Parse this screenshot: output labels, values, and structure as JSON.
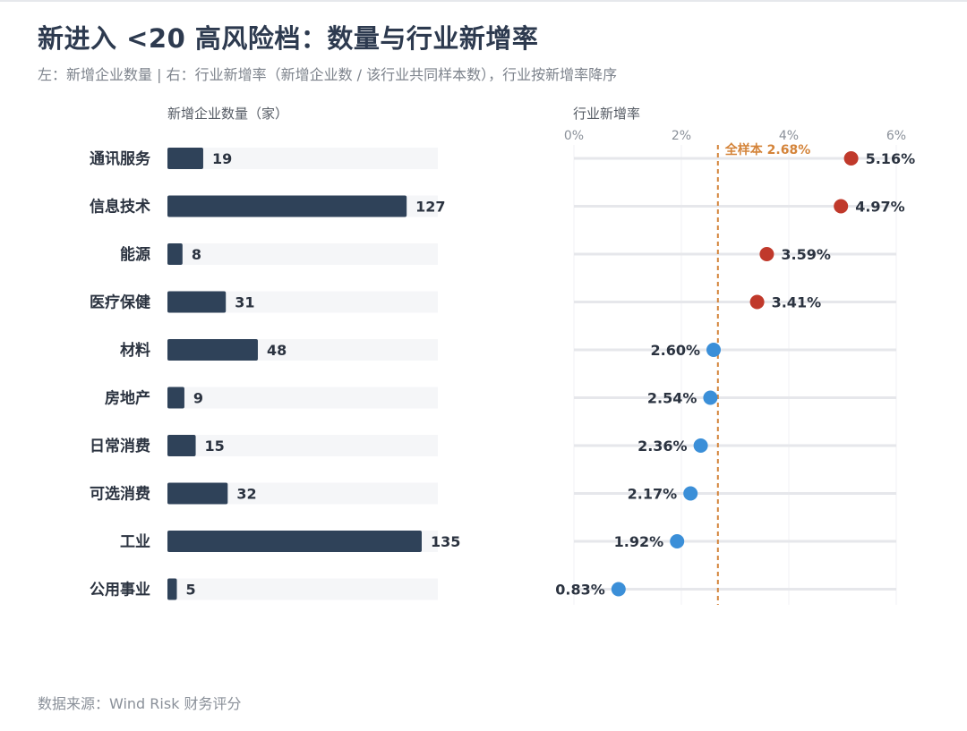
{
  "header": {
    "title": "新进入 <20 高风险档：数量与行业新增率",
    "subtitle": "左：新增企业数量 | 右：行业新增率（新增企业数 / 该行业共同样本数），行业按新增率降序"
  },
  "footer": {
    "source": "数据来源：Wind Risk 财务评分"
  },
  "colors": {
    "bar": "#2f4259",
    "bar_track": "#f5f6f8",
    "above_avg": "#c0392b",
    "below_avg": "#3b8fd8",
    "reference": "#d4843a",
    "grid": "#e6e7eb"
  },
  "chart_data": [
    {
      "type": "bar",
      "orientation": "horizontal",
      "title": "新增企业数量（家）",
      "categories": [
        "通讯服务",
        "信息技术",
        "能源",
        "医疗保健",
        "材料",
        "房地产",
        "日常消费",
        "可选消费",
        "工业",
        "公用事业"
      ],
      "values": [
        19,
        127,
        8,
        31,
        48,
        9,
        15,
        32,
        135,
        5
      ],
      "data_labels": [
        "19",
        "127",
        "8",
        "31",
        "48",
        "9",
        "15",
        "32",
        "135",
        "5"
      ],
      "xlim": [
        0,
        135
      ]
    },
    {
      "type": "scatter",
      "title": "行业新增率",
      "categories": [
        "通讯服务",
        "信息技术",
        "能源",
        "医疗保健",
        "材料",
        "房地产",
        "日常消费",
        "可选消费",
        "工业",
        "公用事业"
      ],
      "values": [
        5.16,
        4.97,
        3.59,
        3.41,
        2.6,
        2.54,
        2.36,
        2.17,
        1.92,
        0.83
      ],
      "data_labels": [
        "5.16%",
        "4.97%",
        "3.59%",
        "3.41%",
        "2.60%",
        "2.54%",
        "2.36%",
        "2.17%",
        "1.92%",
        "0.83%"
      ],
      "xlim": [
        0,
        6
      ],
      "xticks": [
        0,
        2,
        4,
        6
      ],
      "xtick_labels": [
        "0%",
        "2%",
        "4%",
        "6%"
      ],
      "reference_line": {
        "value": 2.68,
        "label": "全样本 2.68%"
      },
      "grid": true
    }
  ]
}
